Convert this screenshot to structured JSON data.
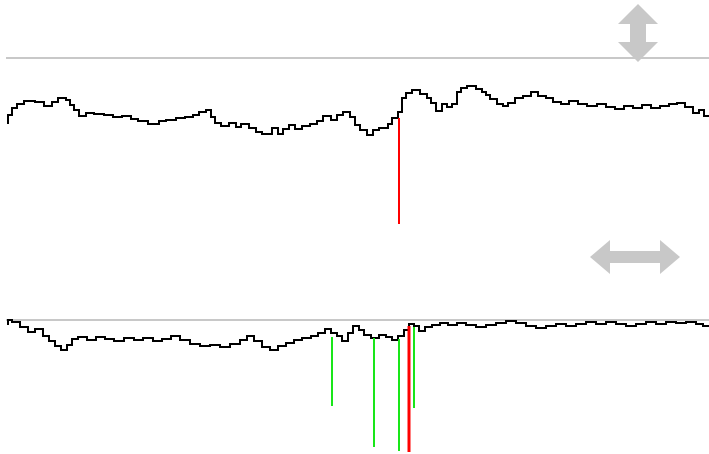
{
  "colors": {
    "background": "#ffffff",
    "guide_line": "#c8c8c8",
    "trace": "#000000",
    "marker_primary": "#ff0000",
    "marker_secondary": "#19e619",
    "resize_icon": "#c8c8c8"
  },
  "icons": {
    "vertical_resize": "vertical-resize-icon",
    "horizontal_resize": "horizontal-resize-icon"
  }
}
